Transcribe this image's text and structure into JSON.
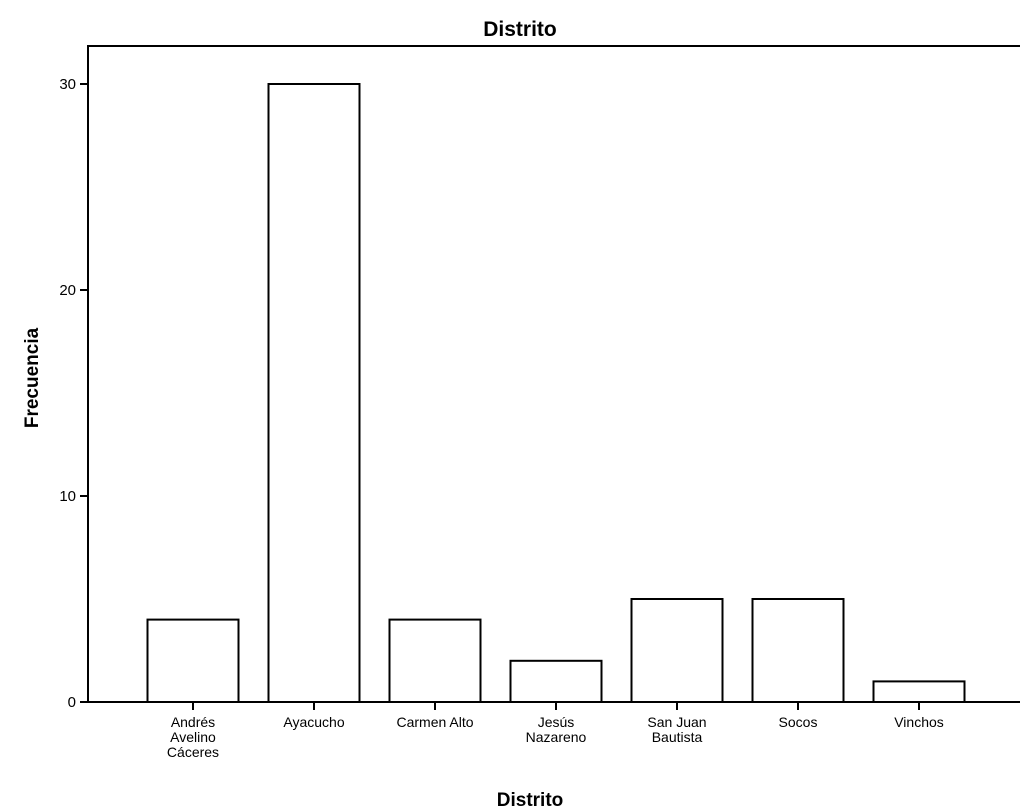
{
  "chart_data": {
    "type": "bar",
    "title": "Distrito",
    "xlabel": "Distrito",
    "ylabel": "Frecuencia",
    "categories": [
      [
        "Andrés",
        "Avelino",
        "Cáceres"
      ],
      [
        "Ayacucho"
      ],
      [
        "Carmen Alto"
      ],
      [
        "Jesús",
        "Nazareno"
      ],
      [
        "San Juan",
        "Bautista"
      ],
      [
        "Socos"
      ],
      [
        "Vinchos"
      ]
    ],
    "values": [
      4,
      30,
      4,
      2,
      5,
      5,
      1
    ],
    "ylim": [
      0,
      31.5
    ],
    "yticks": [
      "0",
      "10",
      "20",
      "30"
    ],
    "grid": false,
    "colors": {
      "bar_fill": "#ffffff",
      "bar_stroke": "#000000"
    }
  }
}
